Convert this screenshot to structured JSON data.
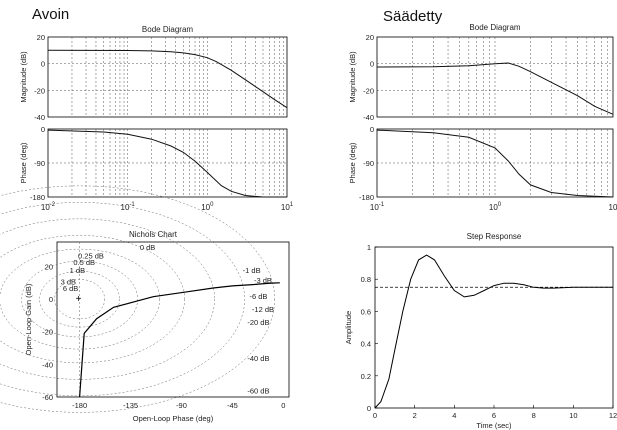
{
  "labels": {
    "left": "Avoin",
    "right": "Säädetty"
  },
  "chart_data": [
    {
      "id": "bode_open",
      "type": "line",
      "title": "Bode Diagram",
      "xscale": "log",
      "xlim": [
        0.01,
        10
      ],
      "x_ticks": [
        "10^-2",
        "10^-1",
        "10^0",
        "10^1"
      ],
      "magnitude": {
        "ylabel": "Magnitude (dB)",
        "ylim": [
          -40,
          20
        ],
        "y_ticks": [
          20,
          0,
          -20,
          -40
        ],
        "series": [
          {
            "x": [
              0.01,
              0.1,
              0.2,
              0.35,
              0.5,
              0.7,
              1,
              1.3,
              2,
              3,
              5,
              7,
              10
            ],
            "y": [
              10,
              9.9,
              9.6,
              8.9,
              8.1,
              6.8,
              4.5,
              1.5,
              -5,
              -12,
              -21,
              -27,
              -33
            ]
          }
        ]
      },
      "phase": {
        "ylabel": "Phase (deg)",
        "ylim": [
          -180,
          0
        ],
        "y_ticks": [
          0,
          -90,
          -180
        ],
        "series": [
          {
            "x": [
              0.01,
              0.05,
              0.1,
              0.2,
              0.35,
              0.5,
              0.7,
              1,
              1.5,
              2,
              3,
              5,
              10
            ],
            "y": [
              -3,
              -8,
              -14,
              -27,
              -45,
              -62,
              -85,
              -115,
              -150,
              -165,
              -176,
              -180,
              -180
            ]
          }
        ]
      },
      "grid": true
    },
    {
      "id": "bode_closed",
      "type": "line",
      "title": "Bode Diagram",
      "xscale": "log",
      "xlim": [
        0.1,
        10
      ],
      "x_ticks": [
        "10^-1",
        "10^0",
        "10"
      ],
      "magnitude": {
        "ylabel": "Magnitude (dB)",
        "ylim": [
          -40,
          20
        ],
        "y_ticks": [
          20,
          0,
          -20,
          -40
        ],
        "series": [
          {
            "x": [
              0.1,
              0.3,
              0.6,
              1,
              1.3,
              1.6,
              2,
              3,
              5,
              7,
              10
            ],
            "y": [
              -2.5,
              -2.3,
              -1.5,
              0,
              0.5,
              -2,
              -6,
              -14,
              -24,
              -32,
              -38
            ]
          }
        ]
      },
      "phase": {
        "ylabel": "Phase (deg)",
        "ylim": [
          -180,
          0
        ],
        "y_ticks": [
          0,
          -90,
          -180
        ],
        "series": [
          {
            "x": [
              0.1,
              0.3,
              0.6,
              1,
              1.3,
              1.6,
              2,
              3,
              5,
              10
            ],
            "y": [
              -3,
              -10,
              -22,
              -50,
              -85,
              -120,
              -148,
              -168,
              -176,
              -180
            ]
          }
        ]
      },
      "grid": true
    },
    {
      "id": "nichols",
      "type": "line",
      "title": "Nichols Chart",
      "xlabel": "Open-Loop Phase (deg)",
      "ylabel": "Open-Loop Gain (dB)",
      "xlim": [
        -200,
        5
      ],
      "ylim": [
        -60,
        35
      ],
      "x_ticks": [
        -180,
        -135,
        -90,
        -45,
        0
      ],
      "y_ticks": [
        20,
        0,
        -20,
        -40,
        -60
      ],
      "grid_labels": [
        "0 dB",
        "0.25 dB",
        "0.5 dB",
        "1 dB",
        "3 dB",
        "6 dB",
        "-1 dB",
        "-3 dB",
        "-6 dB",
        "-12 dB",
        "-20 dB",
        "-40 dB",
        "-60 dB"
      ],
      "series": [
        {
          "x": [
            -3,
            -8,
            -14,
            -27,
            -45,
            -62,
            -85,
            -115,
            -150,
            -165,
            -176,
            -180
          ],
          "y": [
            10,
            9.9,
            9.6,
            8.9,
            8.1,
            6.8,
            4.5,
            1.5,
            -5,
            -12,
            -21,
            -60
          ]
        }
      ],
      "grid": true
    },
    {
      "id": "step",
      "type": "line",
      "title": "Step Response",
      "xlabel": "Time (sec)",
      "ylabel": "Amplitude",
      "xlim": [
        0,
        12
      ],
      "ylim": [
        0,
        1
      ],
      "x_ticks": [
        0,
        2,
        4,
        6,
        8,
        10,
        12
      ],
      "y_ticks": [
        0,
        0.2,
        0.4,
        0.6,
        0.8,
        1
      ],
      "reference_line": 0.75,
      "series": [
        {
          "x": [
            0,
            0.3,
            0.7,
            1,
            1.4,
            1.8,
            2.2,
            2.6,
            3,
            3.5,
            4,
            4.5,
            5,
            5.5,
            6,
            6.5,
            7,
            7.5,
            8,
            8.5,
            9,
            10,
            11,
            12
          ],
          "y": [
            0,
            0.04,
            0.18,
            0.36,
            0.6,
            0.8,
            0.92,
            0.95,
            0.92,
            0.82,
            0.73,
            0.69,
            0.7,
            0.73,
            0.76,
            0.775,
            0.775,
            0.765,
            0.75,
            0.745,
            0.745,
            0.75,
            0.75,
            0.75
          ]
        }
      ],
      "grid": false
    }
  ]
}
